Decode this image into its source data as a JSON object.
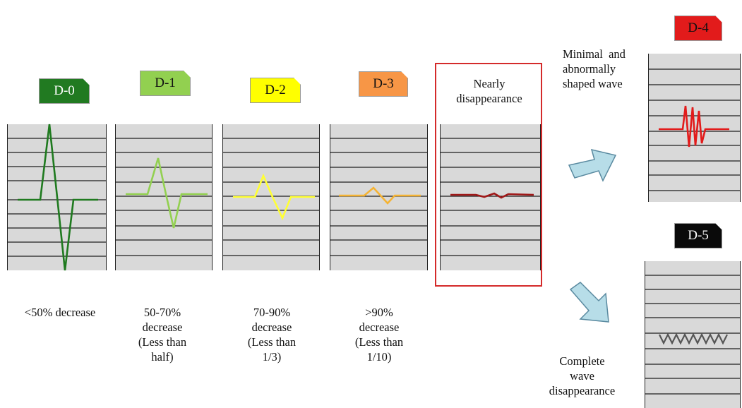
{
  "grades": [
    {
      "label": "D-0",
      "bg": "#217a21",
      "fg": "#ffffff",
      "description": "<50% decrease"
    },
    {
      "label": "D-1",
      "bg": "#92d050",
      "fg": "#111111",
      "description": "50-70% decrease (Less than half)"
    },
    {
      "label": "D-2",
      "bg": "#ffff00",
      "fg": "#111111",
      "description": "70-90% decrease (Less than 1/3)"
    },
    {
      "label": "D-3",
      "bg": "#f79646",
      "fg": "#111111",
      "description": ">90% decrease (Less than 1/10)"
    },
    {
      "label": "D-4",
      "bg": "#e21b1b",
      "fg": "#111111",
      "description": "Minimal and abnormally shaped wave"
    },
    {
      "label": "D-5",
      "bg": "#0a0a0a",
      "fg": "#ffffff",
      "description": "Complete wave disappearance"
    }
  ],
  "descriptions": {
    "d0": "<50% decrease",
    "d1": [
      "50-70%",
      "decrease",
      "(Less than",
      "half)"
    ],
    "d2": [
      "70-90%",
      "decrease",
      "(Less than",
      "1/3)"
    ],
    "d3": [
      ">90%",
      "decrease",
      "(Less than",
      "1/10)"
    ],
    "nearly": [
      "Nearly",
      "disappearance"
    ],
    "d4": [
      "Minimal  and",
      "abnormally",
      "shaped wave"
    ],
    "d5": [
      "Complete",
      "wave",
      "disappearance"
    ]
  },
  "wave_colors": {
    "d0": "#1f7a1f",
    "d1": "#92d050",
    "d2": "#ffff33",
    "d3": "#f5b333",
    "nearly": "#a01818",
    "d4": "#e21b1b",
    "d5": "#555555"
  },
  "arrow_color": "#b7dde8"
}
